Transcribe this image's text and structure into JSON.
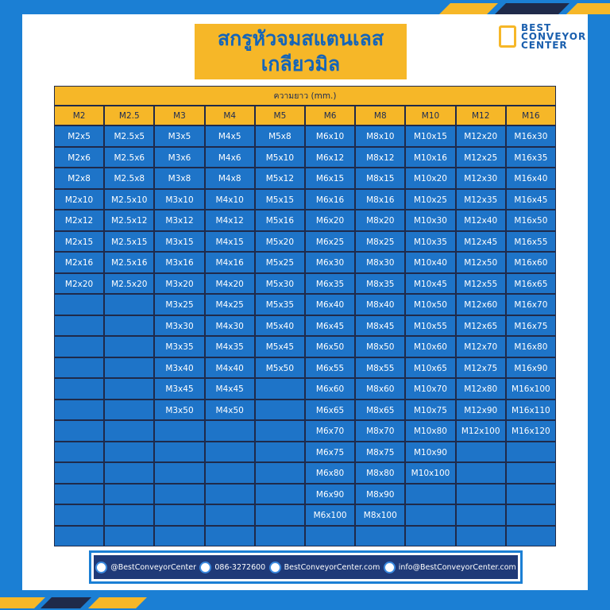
{
  "header": {
    "title_lines": [
      "สกรูหัวจมสแตนเลส",
      "เกลียวมิล"
    ],
    "logo": [
      "BEST",
      "CONVEYOR",
      "CENTER"
    ]
  },
  "table": {
    "caption": "ความยาว (mm.)",
    "columns": [
      {
        "header": "M2",
        "items": [
          "M2x5",
          "M2x6",
          "M2x8",
          "M2x10",
          "M2x12",
          "M2x15",
          "M2x16",
          "M2x20"
        ]
      },
      {
        "header": "M2.5",
        "items": [
          "M2.5x5",
          "M2.5x6",
          "M2.5x8",
          "M2.5x10",
          "M2.5x12",
          "M2.5x15",
          "M2.5x16",
          "M2.5x20"
        ]
      },
      {
        "header": "M3",
        "items": [
          "M3x5",
          "M3x6",
          "M3x8",
          "M3x10",
          "M3x12",
          "M3x15",
          "M3x16",
          "M3x20",
          "M3x25",
          "M3x30",
          "M3x35",
          "M3x40",
          "M3x45",
          "M3x50"
        ]
      },
      {
        "header": "M4",
        "items": [
          "M4x5",
          "M4x6",
          "M4x8",
          "M4x10",
          "M4x12",
          "M4x15",
          "M4x16",
          "M4x20",
          "M4x25",
          "M4x30",
          "M4x35",
          "M4x40",
          "M4x45",
          "M4x50"
        ]
      },
      {
        "header": "M5",
        "items": [
          "M5x8",
          "M5x10",
          "M5x12",
          "M5x15",
          "M5x16",
          "M5x20",
          "M5x25",
          "M5x30",
          "M5x35",
          "M5x40",
          "M5x45",
          "M5x50"
        ]
      },
      {
        "header": "M6",
        "items": [
          "M6x10",
          "M6x12",
          "M6x15",
          "M6x16",
          "M6x20",
          "M6x25",
          "M6x30",
          "M6x35",
          "M6x40",
          "M6x45",
          "M6x50",
          "M6x55",
          "M6x60",
          "M6x65",
          "M6x70",
          "M6x75",
          "M6x80",
          "M6x90",
          "M6x100"
        ]
      },
      {
        "header": "M8",
        "items": [
          "M8x10",
          "M8x12",
          "M8x15",
          "M8x16",
          "M8x20",
          "M8x25",
          "M8x30",
          "M8x35",
          "M8x40",
          "M8x45",
          "M8x50",
          "M8x55",
          "M8x60",
          "M8x65",
          "M8x70",
          "M8x75",
          "M8x80",
          "M8x90",
          "M8x100"
        ]
      },
      {
        "header": "M10",
        "items": [
          "M10x15",
          "M10x16",
          "M10x20",
          "M10x25",
          "M10x30",
          "M10x35",
          "M10x40",
          "M10x45",
          "M10x50",
          "M10x55",
          "M10x60",
          "M10x65",
          "M10x70",
          "M10x75",
          "M10x80",
          "M10x90",
          "M10x100"
        ]
      },
      {
        "header": "M12",
        "items": [
          "M12x20",
          "M12x25",
          "M12x30",
          "M12x35",
          "M12x40",
          "M12x45",
          "M12x50",
          "M12x55",
          "M12x60",
          "M12x65",
          "M12x70",
          "M12x75",
          "M12x80",
          "M12x90",
          "M12x100"
        ]
      },
      {
        "header": "M16",
        "items": [
          "M16x30",
          "M16x35",
          "M16x40",
          "M16x45",
          "M16x50",
          "M16x55",
          "M16x60",
          "M16x65",
          "M16x70",
          "M16x75",
          "M16x80",
          "M16x90",
          "M16x100",
          "M16x110",
          "M16x120"
        ]
      }
    ]
  },
  "footer": {
    "items": [
      "@BestConveyorCenter",
      "086-3272600",
      "BestConveyorCenter.com",
      "info@BestConveyorCenter.com"
    ]
  }
}
